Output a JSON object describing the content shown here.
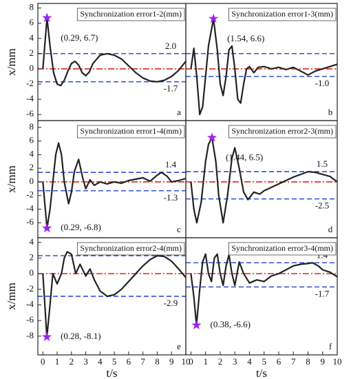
{
  "chart_data": [
    {
      "type": "line",
      "title": "Synchronization error1-2(mm)",
      "panel": "a",
      "ylabel": "x/mm",
      "x": [
        0,
        0.29,
        0.5,
        0.75,
        1,
        1.25,
        1.5,
        1.75,
        2,
        2.25,
        2.5,
        2.75,
        3,
        3.25,
        3.5,
        4,
        4.5,
        5,
        5.5,
        6,
        6.5,
        7,
        7.5,
        8,
        8.5,
        9,
        9.5,
        10
      ],
      "values": [
        0,
        6.7,
        3,
        -0.5,
        -2,
        -2.2,
        -1.5,
        -0.3,
        0.7,
        1,
        0.5,
        -0.5,
        -0.9,
        -0.4,
        0.7,
        1.8,
        2,
        1.8,
        1.3,
        0.4,
        -0.5,
        -1.2,
        -1.6,
        -1.7,
        -1.5,
        -1,
        -0.2,
        1
      ],
      "color": "#222222",
      "xlim": [
        -0.35,
        10
      ],
      "ylim": [
        -6.8,
        8.6
      ],
      "yticks": [
        -6,
        -4,
        -2,
        0,
        2,
        4,
        6,
        8
      ],
      "ref_line": {
        "value": 0,
        "color": "#e02020"
      },
      "thresholds": [
        {
          "value": 2,
          "label": "2.0"
        },
        -1.7
      ],
      "threshold_color": "#1f3fd6",
      "peak": {
        "x": 0.29,
        "y": 6.7,
        "label": "(0.29, 6.7)",
        "color": "#a020f0"
      }
    },
    {
      "type": "line",
      "title": "Synchronization error1-3(mm)",
      "panel": "b",
      "x": [
        0,
        0.2,
        0.4,
        0.6,
        0.8,
        1.0,
        1.2,
        1.54,
        1.8,
        2.0,
        2.2,
        2.4,
        2.6,
        2.8,
        3.0,
        3.2,
        3.4,
        3.6,
        3.8,
        4.0,
        4.3,
        4.6,
        5,
        5.5,
        6,
        6.5,
        7,
        7.5,
        8,
        8.5,
        9,
        9.5,
        10
      ],
      "values": [
        0,
        2.7,
        -1,
        -6,
        -5,
        -1,
        3,
        6.6,
        2.5,
        -2,
        -3.5,
        -1,
        2.5,
        3,
        0,
        -4,
        -4.5,
        -2,
        0,
        0.3,
        -0.5,
        0.2,
        0.3,
        0,
        0.2,
        -0.1,
        0.2,
        -0.3,
        -0.8,
        -0.3,
        0,
        0.3,
        0.6
      ],
      "color": "#222222",
      "xlim": [
        -0.35,
        10
      ],
      "ylim": [
        -6.8,
        8.6
      ],
      "ref_line": {
        "value": 0,
        "color": "#e02020"
      },
      "thresholds": [
        {
          "value": -1,
          "label": "-1.0"
        }
      ],
      "unlabeled_thresholds": [
        2
      ],
      "threshold_color": "#1f3fd6",
      "peak": {
        "x": 1.54,
        "y": 6.6,
        "label": "(1.54, 6.6)",
        "color": "#a020f0"
      }
    },
    {
      "type": "line",
      "title": "Synchronization error1-4(mm)",
      "panel": "c",
      "ylabel": "x/mm",
      "x": [
        0,
        0.29,
        0.5,
        0.7,
        0.9,
        1.1,
        1.3,
        1.5,
        1.8,
        2.0,
        2.2,
        2.5,
        2.8,
        3.0,
        3.3,
        3.6,
        4,
        4.5,
        5,
        5.5,
        6,
        6.5,
        7,
        7.5,
        8,
        8.3,
        8.7,
        9,
        9.5,
        10
      ],
      "values": [
        0,
        -6.8,
        -4,
        0,
        4,
        5.7,
        4,
        0,
        -3.2,
        -1.5,
        1.5,
        3.3,
        0.5,
        -1,
        0.3,
        -0.5,
        0,
        -0.3,
        0,
        -0.2,
        0.2,
        0.4,
        0.6,
        0.1,
        1,
        1.4,
        0.8,
        0,
        0.2,
        0.5
      ],
      "color": "#222222",
      "xlim": [
        -0.35,
        10
      ],
      "ylim": [
        -8.2,
        9
      ],
      "yticks": [
        -6,
        -4,
        -2,
        0,
        2,
        4,
        6,
        8
      ],
      "ref_line": {
        "value": 0,
        "color": "#e02020"
      },
      "thresholds": [
        1.4,
        -1.3
      ],
      "threshold_color": "#1f3fd6",
      "peak": {
        "x": 0.29,
        "y": -6.8,
        "label": "(0.29, -6.8)",
        "color": "#a020f0"
      }
    },
    {
      "type": "line",
      "title": "Synchronization error2-3(mm)",
      "panel": "d",
      "x": [
        0,
        0.2,
        0.4,
        0.7,
        1.0,
        1.2,
        1.44,
        1.7,
        1.9,
        2.2,
        2.5,
        2.8,
        3.0,
        3.3,
        3.6,
        3.9,
        4.3,
        4.7,
        5,
        5.5,
        6,
        6.5,
        7,
        7.5,
        8,
        8.5,
        9,
        9.5,
        10
      ],
      "values": [
        0,
        -4,
        -6,
        -3,
        3,
        5.5,
        6.5,
        3,
        -2,
        -6,
        -2,
        3.5,
        5,
        2,
        -1.5,
        -2.6,
        -1.5,
        -1.8,
        -1.3,
        -0.8,
        -0.3,
        0.2,
        0.7,
        1.1,
        1.5,
        1.4,
        1.1,
        0.8,
        0
      ],
      "color": "#222222",
      "xlim": [
        -0.35,
        10
      ],
      "ylim": [
        -8.2,
        9
      ],
      "ref_line": {
        "value": 0,
        "color": "#e02020"
      },
      "thresholds": [
        1.5,
        -2.5
      ],
      "threshold_color": "#1f3fd6",
      "peak": {
        "x": 1.44,
        "y": 6.5,
        "label": "(1.44, 6.5)",
        "color": "#a020f0"
      }
    },
    {
      "type": "line",
      "title": "Synchronization error2-4(mm)",
      "panel": "e",
      "ylabel": "x/mm",
      "xlabel": "t/s",
      "x": [
        0,
        0.28,
        0.45,
        0.7,
        1.0,
        1.3,
        1.5,
        1.7,
        2.0,
        2.3,
        2.6,
        3.0,
        3.3,
        3.6,
        4,
        4.5,
        5,
        5.5,
        6,
        6.5,
        7,
        7.5,
        8,
        8.5,
        9,
        9.5,
        10
      ],
      "values": [
        0,
        -8.1,
        -5,
        0,
        -1.3,
        0,
        2,
        2.8,
        2.5,
        0,
        1.2,
        -0.3,
        0.6,
        -0.8,
        -2.2,
        -2.9,
        -2.7,
        -2,
        -1,
        0,
        1,
        1.8,
        2.3,
        2.2,
        1.6,
        0.6,
        -0.5
      ],
      "color": "#222222",
      "xlim": [
        -0.35,
        10
      ],
      "ylim": [
        -10.4,
        4.6
      ],
      "yticks": [
        -8,
        -6,
        -4,
        -2,
        0,
        2,
        4
      ],
      "xticks": [
        0,
        1,
        2,
        3,
        4,
        5,
        6,
        7,
        8,
        9,
        10
      ],
      "ref_line": {
        "value": 0,
        "color": "#e02020"
      },
      "thresholds": [
        2.3,
        -2.9
      ],
      "threshold_color": "#1f3fd6",
      "peak": {
        "x": 0.28,
        "y": -8.1,
        "label": "(0.28, -8.1)",
        "color": "#a020f0"
      }
    },
    {
      "type": "line",
      "title": "Synchronization error3-4(mm)",
      "panel": "f",
      "xlabel": "t/s",
      "x": [
        0,
        0.2,
        0.38,
        0.6,
        0.8,
        1.0,
        1.2,
        1.4,
        1.6,
        1.8,
        2.0,
        2.2,
        2.4,
        2.6,
        2.8,
        3.0,
        3.3,
        3.6,
        4,
        4.5,
        5,
        5.5,
        6,
        6.5,
        7,
        7.5,
        8,
        8.3,
        8.7,
        9,
        9.5,
        10
      ],
      "values": [
        0,
        -3,
        -6.6,
        -2,
        1.5,
        2.5,
        0,
        -1,
        2,
        2.5,
        0,
        -1.5,
        1,
        2.4,
        0,
        -1.5,
        1.5,
        0,
        -1.2,
        -0.8,
        -1,
        -0.3,
        0,
        0.5,
        1,
        1.2,
        1.3,
        1.4,
        1,
        0.5,
        0.2,
        -0.4
      ],
      "color": "#222222",
      "xlim": [
        -0.35,
        10
      ],
      "ylim": [
        -10.4,
        4.6
      ],
      "xticks": [
        0,
        1,
        2,
        3,
        4,
        5,
        6,
        7,
        8,
        9,
        10
      ],
      "ref_line": {
        "value": 0,
        "color": "#e02020"
      },
      "thresholds": [
        1.4,
        -1.7
      ],
      "threshold_color": "#1f3fd6",
      "peak": {
        "x": 0.38,
        "y": -6.6,
        "label": "(0.38, -6.6)",
        "color": "#a020f0"
      }
    }
  ]
}
